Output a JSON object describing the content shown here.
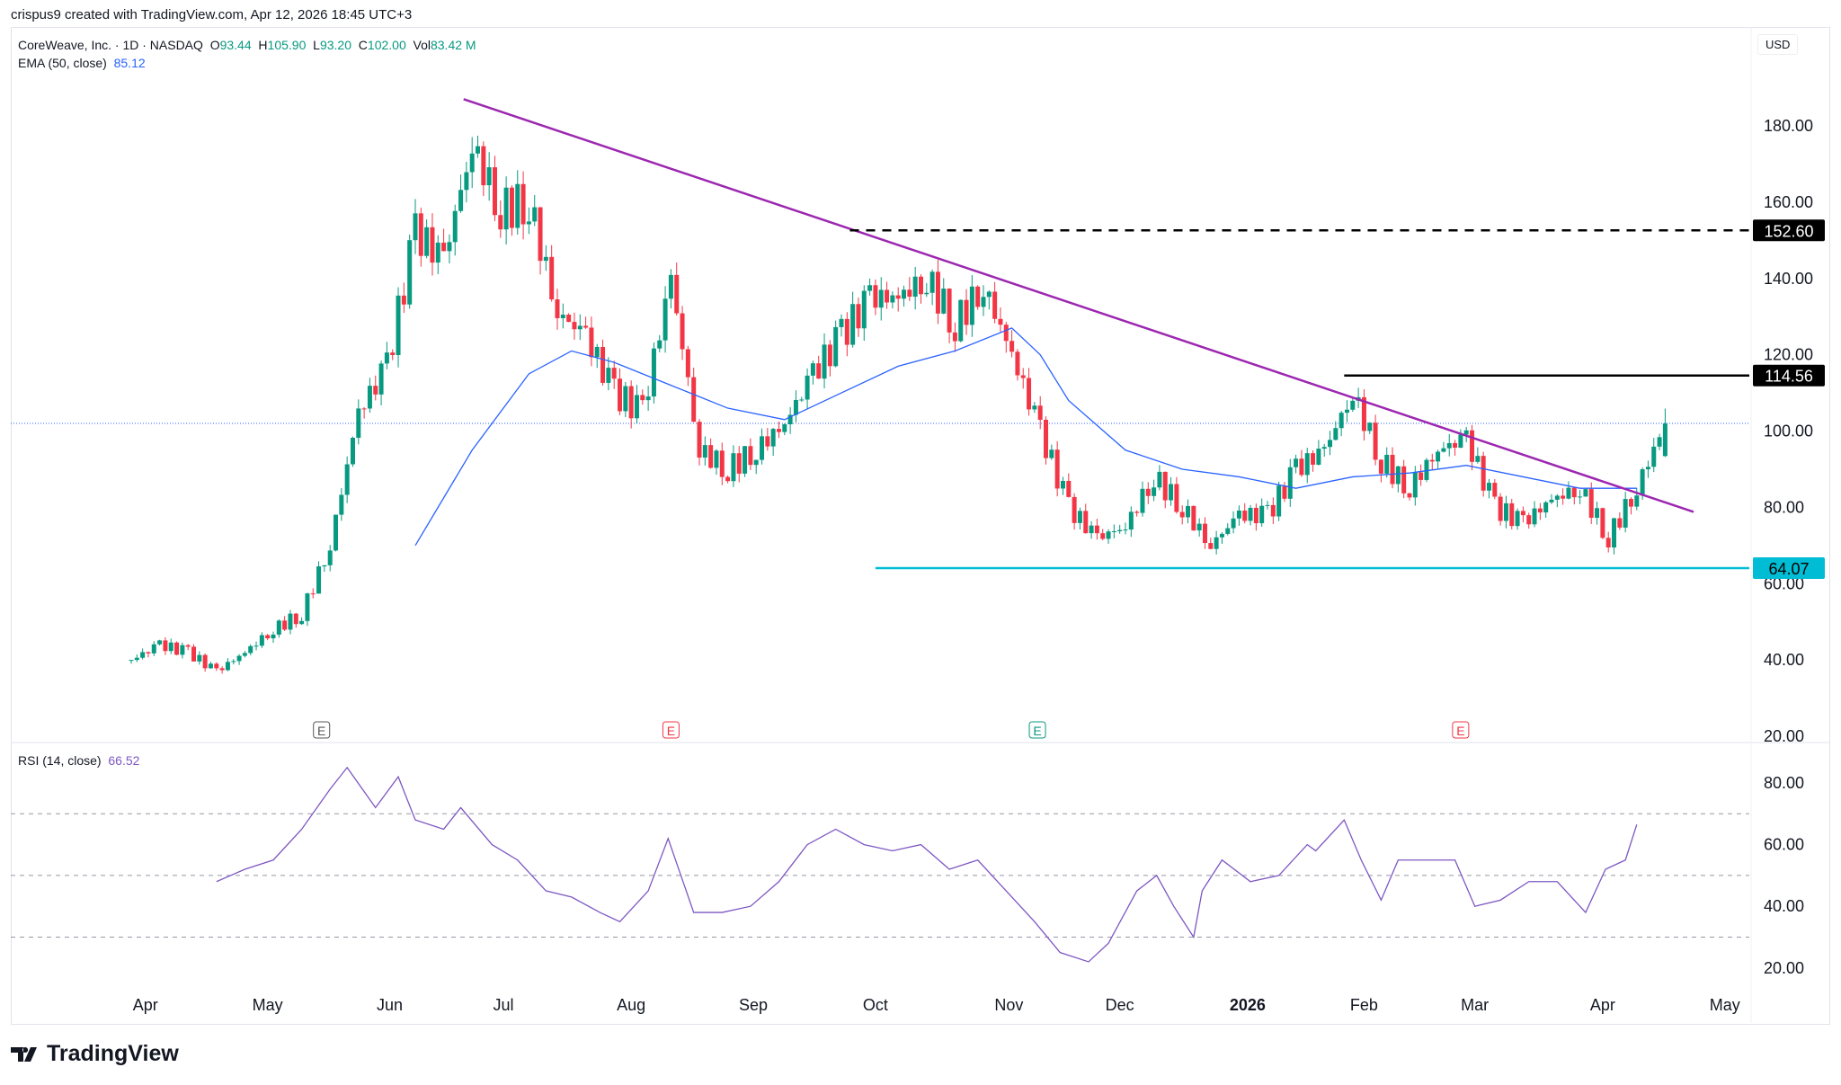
{
  "credit": "crispus9 created with TradingView.com, Apr 12, 2026 18:45 UTC+3",
  "legend": {
    "symbol": "CoreWeave, Inc. · 1D · NASDAQ",
    "o_label": "O",
    "o": "93.44",
    "h_label": "H",
    "h": "105.90",
    "l_label": "L",
    "l": "93.20",
    "c_label": "C",
    "c": "102.00",
    "vol_label": "Vol",
    "vol": "83.42 M",
    "ema_label": "EMA (50, close)",
    "ema": "85.12",
    "rsi_label": "RSI (14, close)",
    "rsi": "66.52"
  },
  "currency": "USD",
  "brand": "TradingView",
  "colors": {
    "up": "#089981",
    "down": "#f23645",
    "ema": "#2962ff",
    "trend": "#9c27b0",
    "support": "#00bcd4",
    "rsi": "#7e57c2"
  },
  "chart_data": {
    "type": "candlestick",
    "price_ticks": [
      180,
      160,
      140,
      120,
      100,
      80,
      60,
      40,
      20
    ],
    "price_range": [
      20,
      180
    ],
    "rsi_ticks": [
      80,
      60,
      40,
      20
    ],
    "rsi_range": [
      20,
      80
    ],
    "rsi_bands": [
      70,
      50,
      30
    ],
    "time_labels": [
      {
        "w": 0.5,
        "t": "Apr"
      },
      {
        "w": 4.8,
        "t": "May"
      },
      {
        "w": 9.1,
        "t": "Jun"
      },
      {
        "w": 13.1,
        "t": "Jul"
      },
      {
        "w": 17.6,
        "t": "Aug"
      },
      {
        "w": 21.9,
        "t": "Sep"
      },
      {
        "w": 26.2,
        "t": "Oct"
      },
      {
        "w": 30.9,
        "t": "Nov"
      },
      {
        "w": 34.8,
        "t": "Dec"
      },
      {
        "w": 39.3,
        "t": "2026"
      },
      {
        "w": 43.4,
        "t": "Feb"
      },
      {
        "w": 47.3,
        "t": "Mar"
      },
      {
        "w": 51.8,
        "t": "Apr"
      },
      {
        "w": 56.1,
        "t": "May"
      }
    ],
    "weekly_close": [
      40,
      44,
      42,
      37,
      42,
      48,
      52,
      70,
      105,
      117,
      152,
      145,
      175,
      158,
      160,
      131,
      125,
      110,
      105,
      140,
      95,
      90,
      95,
      102,
      115,
      125,
      135,
      135,
      140,
      128,
      138,
      120,
      100,
      80,
      72,
      75,
      88,
      80,
      70,
      78,
      78,
      90,
      95,
      110,
      92,
      85,
      95,
      98,
      80,
      76,
      82,
      85,
      72,
      85,
      102
    ],
    "ema50": [
      [
        10.0,
        70
      ],
      [
        12,
        95
      ],
      [
        14,
        115
      ],
      [
        15.5,
        121
      ],
      [
        17,
        118
      ],
      [
        19,
        112
      ],
      [
        21,
        106
      ],
      [
        23,
        103
      ],
      [
        25,
        110
      ],
      [
        27,
        117
      ],
      [
        29,
        121
      ],
      [
        31,
        127
      ],
      [
        32,
        120
      ],
      [
        33,
        108
      ],
      [
        35,
        95
      ],
      [
        37,
        90
      ],
      [
        39,
        88
      ],
      [
        41,
        85
      ],
      [
        43,
        88
      ],
      [
        45,
        89
      ],
      [
        47,
        91
      ],
      [
        49,
        88
      ],
      [
        51,
        85
      ],
      [
        53,
        85
      ]
    ],
    "rsi": [
      [
        3,
        48
      ],
      [
        4,
        52
      ],
      [
        5,
        55
      ],
      [
        6,
        65
      ],
      [
        7,
        78
      ],
      [
        7.6,
        85
      ],
      [
        8.6,
        72
      ],
      [
        9.4,
        82
      ],
      [
        10,
        68
      ],
      [
        11,
        65
      ],
      [
        11.6,
        72
      ],
      [
        12.7,
        60
      ],
      [
        13.6,
        55
      ],
      [
        14.6,
        45
      ],
      [
        15.5,
        43
      ],
      [
        16.5,
        38
      ],
      [
        17.2,
        35
      ],
      [
        18.2,
        45
      ],
      [
        18.9,
        62
      ],
      [
        19.8,
        38
      ],
      [
        20.8,
        38
      ],
      [
        21.8,
        40
      ],
      [
        22.8,
        48
      ],
      [
        23.8,
        60
      ],
      [
        24.8,
        65
      ],
      [
        25.8,
        60
      ],
      [
        26.8,
        58
      ],
      [
        27.8,
        60
      ],
      [
        28.8,
        52
      ],
      [
        29.8,
        55
      ],
      [
        30.8,
        45
      ],
      [
        31.8,
        35
      ],
      [
        32.7,
        25
      ],
      [
        33.7,
        22
      ],
      [
        34.4,
        28
      ],
      [
        35.4,
        45
      ],
      [
        36.1,
        50
      ],
      [
        36.7,
        40
      ],
      [
        37.4,
        30
      ],
      [
        37.7,
        45
      ],
      [
        38.4,
        55
      ],
      [
        39.4,
        48
      ],
      [
        40.4,
        50
      ],
      [
        41.4,
        60
      ],
      [
        41.7,
        58
      ],
      [
        42.7,
        68
      ],
      [
        43.3,
        55
      ],
      [
        44,
        42
      ],
      [
        44.6,
        55
      ],
      [
        45.6,
        55
      ],
      [
        46.6,
        55
      ],
      [
        47.3,
        40
      ],
      [
        48.2,
        42
      ],
      [
        49.2,
        48
      ],
      [
        50.2,
        48
      ],
      [
        51.2,
        38
      ],
      [
        51.9,
        52
      ],
      [
        52.6,
        55
      ],
      [
        53,
        66.5
      ]
    ],
    "trendline": {
      "from": [
        11.7,
        187
      ],
      "to": [
        55,
        78.8
      ]
    },
    "levels": [
      {
        "value": 152.6,
        "label": "152.60",
        "style": "dashed",
        "from": 25.3
      },
      {
        "value": 114.56,
        "label": "114.56",
        "style": "solid",
        "from": 42.7
      },
      {
        "value": 64.07,
        "label": "64.07",
        "style": "support",
        "from": 26.2
      }
    ],
    "last_price": 102,
    "earnings": [
      {
        "w": 6.7,
        "label": "E",
        "kind": "past"
      },
      {
        "w": 19,
        "label": "E",
        "kind": "miss"
      },
      {
        "w": 31.9,
        "label": "E",
        "kind": "beat"
      },
      {
        "w": 46.8,
        "label": "E",
        "kind": "miss"
      }
    ]
  }
}
